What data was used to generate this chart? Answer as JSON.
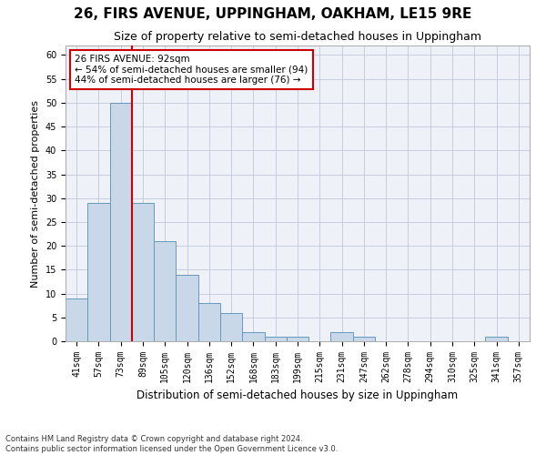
{
  "title": "26, FIRS AVENUE, UPPINGHAM, OAKHAM, LE15 9RE",
  "subtitle": "Size of property relative to semi-detached houses in Uppingham",
  "xlabel": "Distribution of semi-detached houses by size in Uppingham",
  "ylabel": "Number of semi-detached properties",
  "categories": [
    "41sqm",
    "57sqm",
    "73sqm",
    "89sqm",
    "105sqm",
    "120sqm",
    "136sqm",
    "152sqm",
    "168sqm",
    "183sqm",
    "199sqm",
    "215sqm",
    "231sqm",
    "247sqm",
    "262sqm",
    "278sqm",
    "294sqm",
    "310sqm",
    "325sqm",
    "341sqm",
    "357sqm"
  ],
  "values": [
    9,
    29,
    50,
    29,
    21,
    14,
    8,
    6,
    2,
    1,
    1,
    0,
    2,
    1,
    0,
    0,
    0,
    0,
    0,
    1,
    0
  ],
  "bar_color": "#c8d8e8",
  "bar_edge_color": "#6699bb",
  "vline_x": 2.5,
  "vline_color": "#cc0000",
  "annotation_text": "26 FIRS AVENUE: 92sqm\n← 54% of semi-detached houses are smaller (94)\n44% of semi-detached houses are larger (76) →",
  "annotation_box_color": "#ffffff",
  "annotation_box_edge_color": "#cc0000",
  "ylim": [
    0,
    62
  ],
  "yticks": [
    0,
    5,
    10,
    15,
    20,
    25,
    30,
    35,
    40,
    45,
    50,
    55,
    60
  ],
  "title_fontsize": 11,
  "subtitle_fontsize": 9,
  "tick_fontsize": 7,
  "xlabel_fontsize": 8.5,
  "ylabel_fontsize": 8,
  "annotation_fontsize": 7.5,
  "footnote1": "Contains HM Land Registry data © Crown copyright and database right 2024.",
  "footnote2": "Contains public sector information licensed under the Open Government Licence v3.0.",
  "background_color": "#ffffff",
  "plot_bg_color": "#eef2f8",
  "grid_color": "#c0c8d8"
}
